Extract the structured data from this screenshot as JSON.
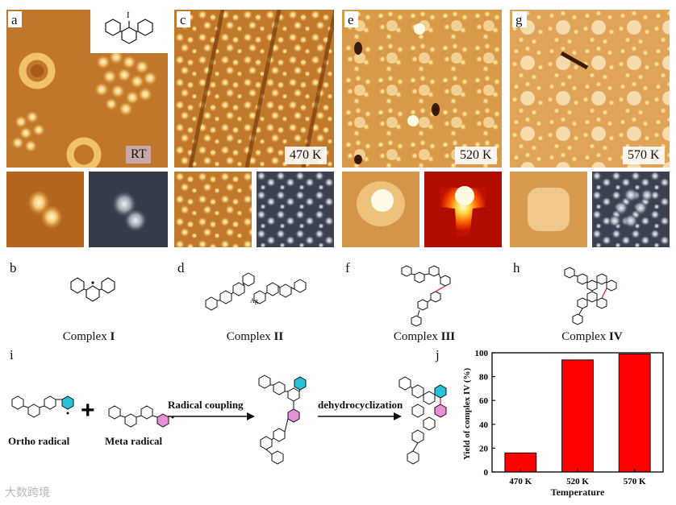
{
  "panel_labels": {
    "a": "a",
    "b": "b",
    "c": "c",
    "d": "d",
    "e": "e",
    "f": "f",
    "g": "g",
    "h": "h",
    "i": "i",
    "j": "j"
  },
  "stm_panels": [
    {
      "temperature": "RT"
    },
    {
      "temperature": "470 K"
    },
    {
      "temperature": "520 K"
    },
    {
      "temperature": "570 K"
    }
  ],
  "inset_atom_label": "I",
  "complexes": [
    {
      "prefix": "Complex ",
      "numeral": "I"
    },
    {
      "prefix": "Complex ",
      "numeral": "II"
    },
    {
      "prefix": "Complex ",
      "numeral": "III"
    },
    {
      "prefix": "Complex ",
      "numeral": "IV"
    }
  ],
  "complex_ii_atom": "Ag",
  "reaction": {
    "ortho_label": "Ortho radical",
    "meta_label": "Meta radical",
    "plus": "+",
    "step1": "Radical coupling",
    "step2": "dehydrocyclization"
  },
  "colors": {
    "cyan": "#27c3d9",
    "pink": "#e88fd6",
    "bar": "#ff0000"
  },
  "chart_data": {
    "type": "bar",
    "categories": [
      "470 K",
      "520 K",
      "570 K"
    ],
    "values": [
      16,
      94,
      99
    ],
    "xlabel": "Temperature",
    "ylabel": "Yield of complex IV (%)",
    "ylim": [
      0,
      100
    ],
    "yticks": [
      0,
      20,
      40,
      60,
      80,
      100
    ]
  },
  "watermark": "大数跨境"
}
